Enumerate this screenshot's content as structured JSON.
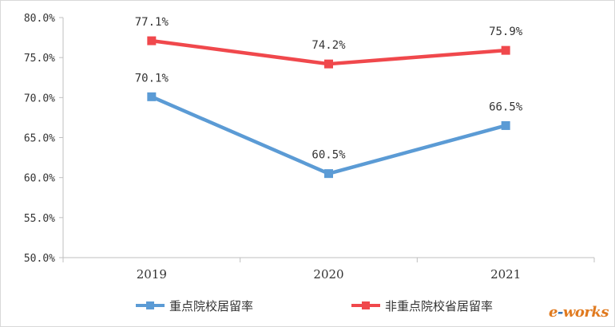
{
  "chart_data": {
    "type": "line",
    "categories": [
      "2019",
      "2020",
      "2021"
    ],
    "series": [
      {
        "name": "重点院校居留率",
        "values": [
          70.1,
          60.5,
          66.5
        ],
        "labels": [
          "70.1%",
          "60.5%",
          "66.5%"
        ],
        "color": "#5b9bd5"
      },
      {
        "name": "非重点院校省居留率",
        "values": [
          77.1,
          74.2,
          75.9
        ],
        "labels": [
          "77.1%",
          "74.2%",
          "75.9%"
        ],
        "color": "#f0484c"
      }
    ],
    "ylim": [
      50,
      80
    ],
    "yticks": [
      50,
      55,
      60,
      65,
      70,
      75,
      80
    ],
    "ytick_labels": [
      "50.0%",
      "55.0%",
      "60.0%",
      "65.0%",
      "70.0%",
      "75.0%",
      "80.0%"
    ],
    "grid": false,
    "legend_position": "bottom"
  },
  "watermark": {
    "prefix": "e",
    "dash": "-",
    "suffix": "works"
  }
}
